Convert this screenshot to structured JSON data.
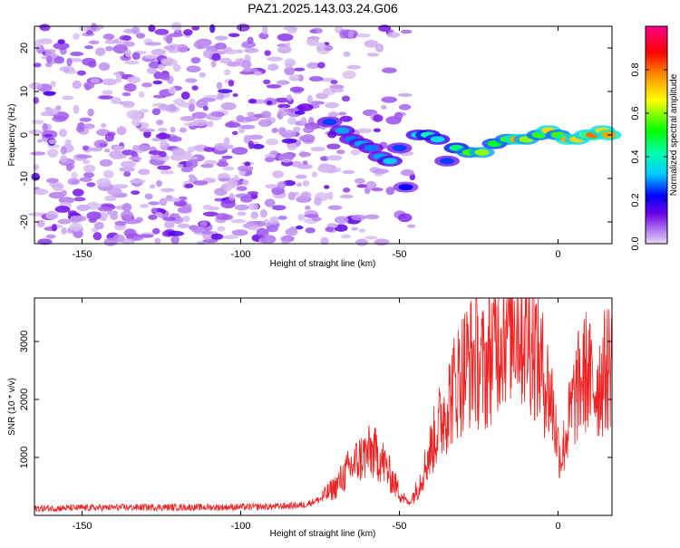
{
  "title": "PAZ1.2025.143.03.24.G06",
  "colors": {
    "snr_line": "#ee2222",
    "axes": "#000000",
    "background": "#ffffff"
  },
  "chart_data": [
    {
      "type": "heatmap",
      "xlabel": "Height of straight line (km)",
      "ylabel": "Frequency (Hz)",
      "xlim": [
        -165,
        17
      ],
      "ylim": [
        -25,
        25
      ],
      "xticks": [
        -150,
        -100,
        -50,
        0
      ],
      "yticks": [
        -20,
        -10,
        0,
        10,
        20
      ],
      "colorbar": {
        "label": "Normalized spectral amplitude",
        "range": [
          0,
          1
        ],
        "ticks": [
          "0.0",
          "0.2",
          "0.4",
          "0.6",
          "0.8"
        ],
        "tick_values": [
          0,
          0.2,
          0.4,
          0.6,
          0.8
        ]
      },
      "ridge": [
        {
          "x": -72,
          "y": 3,
          "v": 0.25
        },
        {
          "x": -68,
          "y": 1,
          "v": 0.3
        },
        {
          "x": -65,
          "y": -1,
          "v": 0.28
        },
        {
          "x": -62,
          "y": -2,
          "v": 0.3
        },
        {
          "x": -59,
          "y": -3,
          "v": 0.28
        },
        {
          "x": -56,
          "y": -5,
          "v": 0.3
        },
        {
          "x": -53,
          "y": -6,
          "v": 0.32
        },
        {
          "x": -50,
          "y": -3,
          "v": 0.25
        },
        {
          "x": -48,
          "y": -12,
          "v": 0.22
        },
        {
          "x": -44,
          "y": 0,
          "v": 0.35
        },
        {
          "x": -41,
          "y": 0,
          "v": 0.4
        },
        {
          "x": -38,
          "y": -1,
          "v": 0.35
        },
        {
          "x": -35,
          "y": -6,
          "v": 0.25
        },
        {
          "x": -32,
          "y": -3,
          "v": 0.45
        },
        {
          "x": -28,
          "y": -4,
          "v": 0.55
        },
        {
          "x": -24,
          "y": -4,
          "v": 0.6
        },
        {
          "x": -20,
          "y": -2,
          "v": 0.5
        },
        {
          "x": -16,
          "y": -1,
          "v": 0.55
        },
        {
          "x": -13,
          "y": -1,
          "v": 0.75
        },
        {
          "x": -10,
          "y": -1,
          "v": 0.6
        },
        {
          "x": -6,
          "y": 0,
          "v": 0.55
        },
        {
          "x": -3,
          "y": 1,
          "v": 0.7
        },
        {
          "x": 0,
          "y": 0,
          "v": 0.55
        },
        {
          "x": 3,
          "y": -1,
          "v": 0.75
        },
        {
          "x": 6,
          "y": -1,
          "v": 0.7
        },
        {
          "x": 9,
          "y": 0,
          "v": 0.65
        },
        {
          "x": 11,
          "y": 0,
          "v": 0.8
        },
        {
          "x": 14,
          "y": 1,
          "v": 0.7
        },
        {
          "x": 16,
          "y": 0,
          "v": 0.75
        }
      ]
    },
    {
      "type": "line",
      "xlabel": "Height of straight line (km)",
      "ylabel": "SNR (10 * v/v)",
      "xlim": [
        -165,
        17
      ],
      "ylim": [
        0,
        3750
      ],
      "xticks": [
        -150,
        -100,
        -50,
        0
      ],
      "yticks": [
        1000,
        2000,
        3000
      ],
      "series": [
        {
          "x": [
            -165,
            -150,
            -130,
            -110,
            -90,
            -80,
            -75,
            -70,
            -66,
            -62,
            -59,
            -56,
            -53,
            -50,
            -47,
            -44,
            -41,
            -38,
            -35,
            -32,
            -29,
            -26,
            -23,
            -20,
            -17,
            -14,
            -11,
            -8,
            -5,
            -2,
            0,
            1,
            3,
            5,
            7,
            9,
            11,
            13,
            15,
            17
          ],
          "values": [
            120,
            130,
            140,
            140,
            150,
            180,
            280,
            500,
            800,
            1000,
            1100,
            1000,
            700,
            400,
            200,
            500,
            1000,
            1500,
            1900,
            2300,
            2600,
            2700,
            2500,
            3000,
            3300,
            3500,
            3200,
            3000,
            2500,
            2000,
            1200,
            1000,
            1500,
            2000,
            2300,
            2500,
            2200,
            2300,
            2500,
            2700
          ]
        }
      ]
    }
  ]
}
